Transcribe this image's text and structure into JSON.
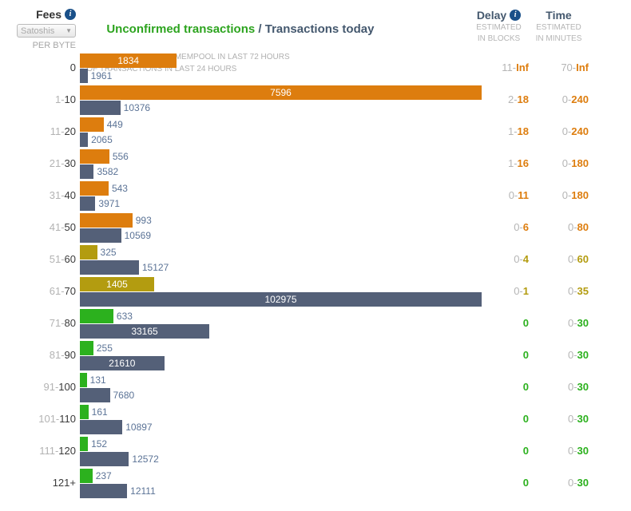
{
  "header": {
    "fees_label": "Fees",
    "unit_value": "Satoshis",
    "per_byte": "PER BYTE",
    "title_unconfirmed": "Unconfirmed transactions",
    "title_separator": " / ",
    "title_today": "Transactions today",
    "subtitle_mempool": "# OF TRANSACTIONS IN MEMPOOL IN LAST 72 HOURS",
    "subtitle_today": "# OF TRANSACTIONS IN LAST 24 HOURS",
    "delay": {
      "label": "Delay",
      "sub_line1": "ESTIMATED",
      "sub_line2": "IN BLOCKS"
    },
    "time": {
      "label": "Time",
      "sub_line1": "ESTIMATED",
      "sub_line2": "IN MINUTES"
    }
  },
  "icons": {
    "info": "i",
    "dropdown_arrow": "▼"
  },
  "colors": {
    "orange": "#DD7D0E",
    "olive": "#B39C10",
    "green": "#2CB11E",
    "slate": "#546078",
    "bar_label_inside": "#FFFFFF",
    "bar_label_outside": "#5B7396",
    "fee_pre": "#B3B3B3",
    "fee_main": "#3A3A3A",
    "range_pre": "#B5B5B5",
    "title_green": "#2DA41F",
    "title_slate": "#44586E",
    "info_blue": "#1A5089"
  },
  "chart_data": {
    "type": "bar",
    "orientation": "horizontal",
    "title": "Unconfirmed transactions / Transactions today",
    "series": [
      {
        "name": "Unconfirmed transactions",
        "description": "# of transactions in mempool in last 72 hours",
        "scale_max": 7596
      },
      {
        "name": "Transactions today",
        "description": "# of transactions in last 24 hours",
        "scale_max": 102975
      }
    ],
    "notes": "Each series is independently scaled to the same max pixel width. Bar color / delay / time text color follows row status.",
    "rows": [
      {
        "fee": "0",
        "mempool": 1834,
        "today": 1961,
        "delay": "11-Inf",
        "time": "70-Inf",
        "status": "orange"
      },
      {
        "fee": "1-10",
        "mempool": 7596,
        "today": 10376,
        "delay": "2-18",
        "time": "0-240",
        "status": "orange"
      },
      {
        "fee": "11-20",
        "mempool": 449,
        "today": 2065,
        "delay": "1-18",
        "time": "0-240",
        "status": "orange"
      },
      {
        "fee": "21-30",
        "mempool": 556,
        "today": 3582,
        "delay": "1-16",
        "time": "0-180",
        "status": "orange"
      },
      {
        "fee": "31-40",
        "mempool": 543,
        "today": 3971,
        "delay": "0-11",
        "time": "0-180",
        "status": "orange"
      },
      {
        "fee": "41-50",
        "mempool": 993,
        "today": 10569,
        "delay": "0-6",
        "time": "0-80",
        "status": "orange"
      },
      {
        "fee": "51-60",
        "mempool": 325,
        "today": 15127,
        "delay": "0-4",
        "time": "0-60",
        "status": "olive"
      },
      {
        "fee": "61-70",
        "mempool": 1405,
        "today": 102975,
        "delay": "0-1",
        "time": "0-35",
        "status": "olive"
      },
      {
        "fee": "71-80",
        "mempool": 633,
        "today": 33165,
        "delay": "0",
        "time": "0-30",
        "status": "green"
      },
      {
        "fee": "81-90",
        "mempool": 255,
        "today": 21610,
        "delay": "0",
        "time": "0-30",
        "status": "green"
      },
      {
        "fee": "91-100",
        "mempool": 131,
        "today": 7680,
        "delay": "0",
        "time": "0-30",
        "status": "green"
      },
      {
        "fee": "101-110",
        "mempool": 161,
        "today": 10897,
        "delay": "0",
        "time": "0-30",
        "status": "green"
      },
      {
        "fee": "111-120",
        "mempool": 152,
        "today": 12572,
        "delay": "0",
        "time": "0-30",
        "status": "green"
      },
      {
        "fee": "121+",
        "mempool": 237,
        "today": 12111,
        "delay": "0",
        "time": "0-30",
        "status": "green"
      }
    ]
  }
}
